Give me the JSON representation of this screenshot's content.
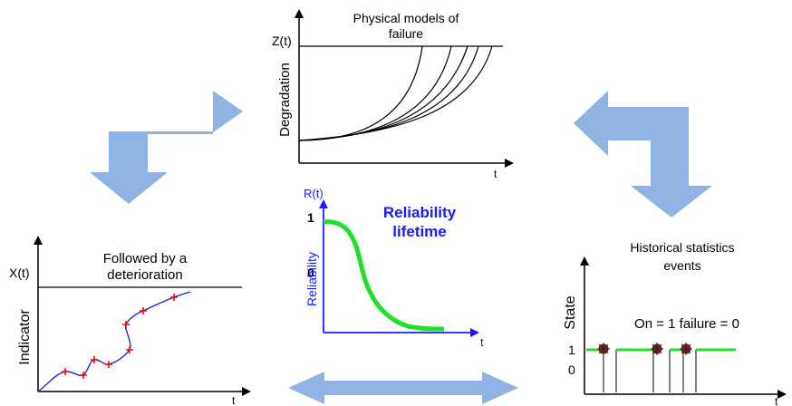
{
  "degradation_panel": {
    "title_line1": "Physical models of",
    "title_line2": "failure",
    "threshold_label": "Z(t)",
    "y_label": "Degradation",
    "x_label": "t"
  },
  "reliability_panel": {
    "y_axis_label": "R(t)",
    "tick_1": "1",
    "tick_0": "0",
    "y_label": "Reliability",
    "x_label": "t",
    "title_line1": "Reliability",
    "title_line2": "lifetime",
    "curve_color": "#22e02a",
    "axis_color": "#1a1aff"
  },
  "indicator_panel": {
    "title_line1": "Followed by a",
    "title_line2": "deterioration",
    "threshold_label": "X(t)",
    "y_label": "Indicator",
    "x_label": "t",
    "line_color": "#1a1acc",
    "marker_color": "#ff0000"
  },
  "state_panel": {
    "title_line1": "Historical statistics",
    "title_line2": "events",
    "y_label": "State",
    "state_text": "On = 1 failure = 0",
    "tick_1": "1",
    "tick_0": "0",
    "x_label": "t",
    "on_color": "#22e02a",
    "failure_marker_color": "#cc1111"
  },
  "arrows": {
    "color": "#8fb3e3",
    "items": [
      "left-elbow-arrow",
      "right-elbow-arrow",
      "bottom-double-arrow"
    ]
  }
}
